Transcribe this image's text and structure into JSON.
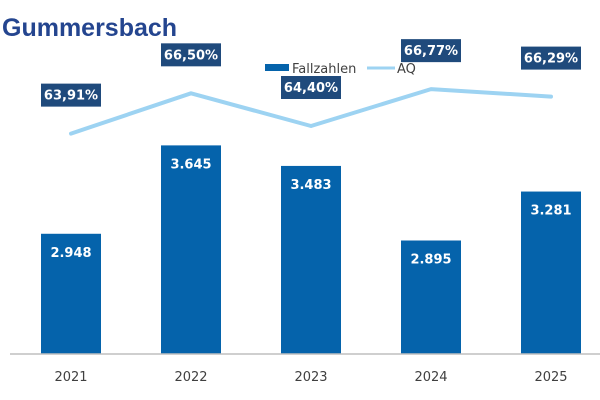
{
  "header": {
    "title": "Gummersbach"
  },
  "colors": {
    "bar": "#0563ab",
    "line": "#9dd3f2",
    "label_box": "#1f4a7c",
    "title": "#24458f"
  },
  "chart_data": {
    "type": "bar",
    "title": "Gummersbach",
    "xlabel": "",
    "ylabel": "",
    "categories": [
      "2021",
      "2022",
      "2023",
      "2024",
      "2025"
    ],
    "series": [
      {
        "name": "Fallzahlen",
        "kind": "bar",
        "values": [
          2948,
          3645,
          3483,
          2895,
          3281
        ],
        "labels": [
          "2.948",
          "3.645",
          "3.483",
          "2.895",
          "3.281"
        ]
      },
      {
        "name": "AQ",
        "kind": "line",
        "values": [
          63.91,
          66.5,
          64.4,
          66.77,
          66.29
        ],
        "labels": [
          "63,91%",
          "66,50%",
          "64,40%",
          "66,77%",
          "66,29%"
        ]
      }
    ],
    "ylim": [
      2000,
      4200
    ],
    "y2lim": [
      59,
      68
    ],
    "grid": false,
    "legend": "top-center"
  }
}
